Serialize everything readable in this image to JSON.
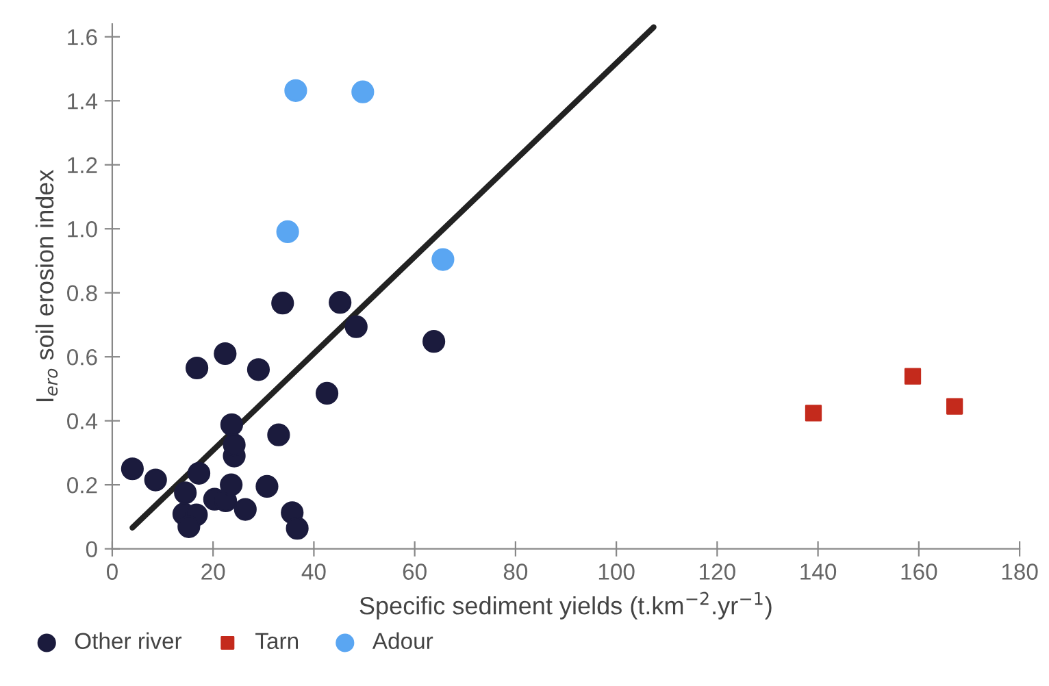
{
  "chart_data": {
    "type": "scatter",
    "xlabel": "Specific sediment yields (t.km$^{−2}$.yr$^{−1}$)",
    "ylabel": "I$_{ero}$ soil erosion index",
    "xlim": [
      0,
      180
    ],
    "xticks": [
      0,
      20,
      40,
      60,
      80,
      100,
      120,
      140,
      160,
      180
    ],
    "ylim": [
      0,
      1.64
    ],
    "yticks": [
      0,
      0.2,
      0.4,
      0.6,
      0.8,
      {
        "value": 1,
        "label": "1.0"
      },
      1.2,
      1.4,
      1.6
    ],
    "grid": false,
    "legend": "bottom left",
    "series": [
      {
        "name": "Other river",
        "color": "#1b1b3d",
        "marker": "circle",
        "x": [
          4.0,
          8.6,
          14.5,
          17.2,
          14.2,
          16.7,
          15.2,
          20.3,
          22.5,
          23.6,
          26.4,
          24.2,
          24.2,
          23.7,
          30.7,
          33.0,
          35.7,
          36.7,
          16.8,
          22.4,
          29.0,
          33.8,
          45.2,
          48.4,
          42.6,
          63.8
        ],
        "values": [
          0.25,
          0.215,
          0.175,
          0.236,
          0.109,
          0.106,
          0.069,
          0.155,
          0.15,
          0.2,
          0.123,
          0.29,
          0.325,
          0.388,
          0.195,
          0.356,
          0.113,
          0.064,
          0.565,
          0.61,
          0.56,
          0.768,
          0.77,
          0.694,
          0.486,
          0.648
        ]
      },
      {
        "name": "Tarn",
        "color": "#c42a1c",
        "marker": "square",
        "x": [
          139.1,
          158.8,
          167.1
        ],
        "values": [
          0.424,
          0.539,
          0.445
        ]
      },
      {
        "name": "Adour",
        "color": "#5aa6f2",
        "marker": "circle",
        "x": [
          36.4,
          49.7,
          34.8,
          65.6
        ],
        "values": [
          1.432,
          1.428,
          0.991,
          0.904
        ]
      },
      {
        "type": "line",
        "color": "#222222",
        "marker": "none",
        "x": [
          4.0,
          107.4
        ],
        "values": [
          0.066,
          1.63
        ]
      }
    ]
  }
}
